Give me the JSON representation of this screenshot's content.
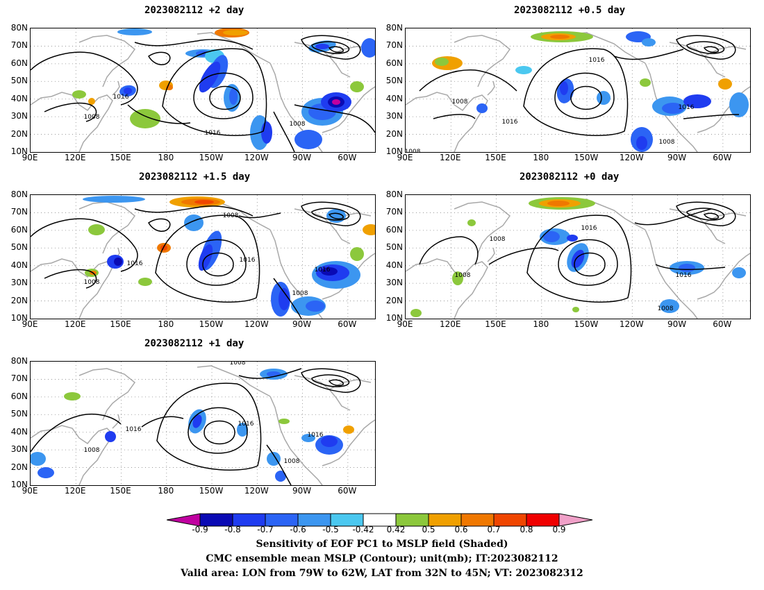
{
  "panels": [
    {
      "title": "2023082112  +2 day"
    },
    {
      "title": "2023082112  +0.5 day"
    },
    {
      "title": "2023082112  +1.5 day"
    },
    {
      "title": "2023082112  +0 day"
    },
    {
      "title": "2023082112  +1 day"
    }
  ],
  "axes": {
    "lat_labels": [
      "80N",
      "70N",
      "60N",
      "50N",
      "40N",
      "30N",
      "20N",
      "10N"
    ],
    "lon_labels": [
      "90E",
      "120E",
      "150E",
      "180",
      "150W",
      "120W",
      "90W",
      "60W"
    ]
  },
  "contour_labels": [
    "1016",
    "1008"
  ],
  "colorbar": {
    "ticks": [
      "-0.9",
      "-0.8",
      "-0.7",
      "-0.6",
      "-0.5",
      "-0.42",
      "0.42",
      "0.5",
      "0.6",
      "0.7",
      "0.8",
      "0.9"
    ],
    "colors": [
      "#c000a0",
      "#0a0ab4",
      "#1f3cf0",
      "#2b64f5",
      "#3c96f0",
      "#4bc8f0",
      "#ffffff",
      "#8cc83c",
      "#f0a000",
      "#f07800",
      "#f04600",
      "#f00000",
      "#f0a0c8"
    ]
  },
  "caption": {
    "line1": "Sensitivity of EOF PC1 to MSLP field (Shaded)",
    "line2": "CMC ensemble mean MSLP (Contour); unit(mb); IT:2023082112",
    "line3": "Valid area: LON from 79W to 62W, LAT from 32N to 45N; VT: 2023082312"
  }
}
